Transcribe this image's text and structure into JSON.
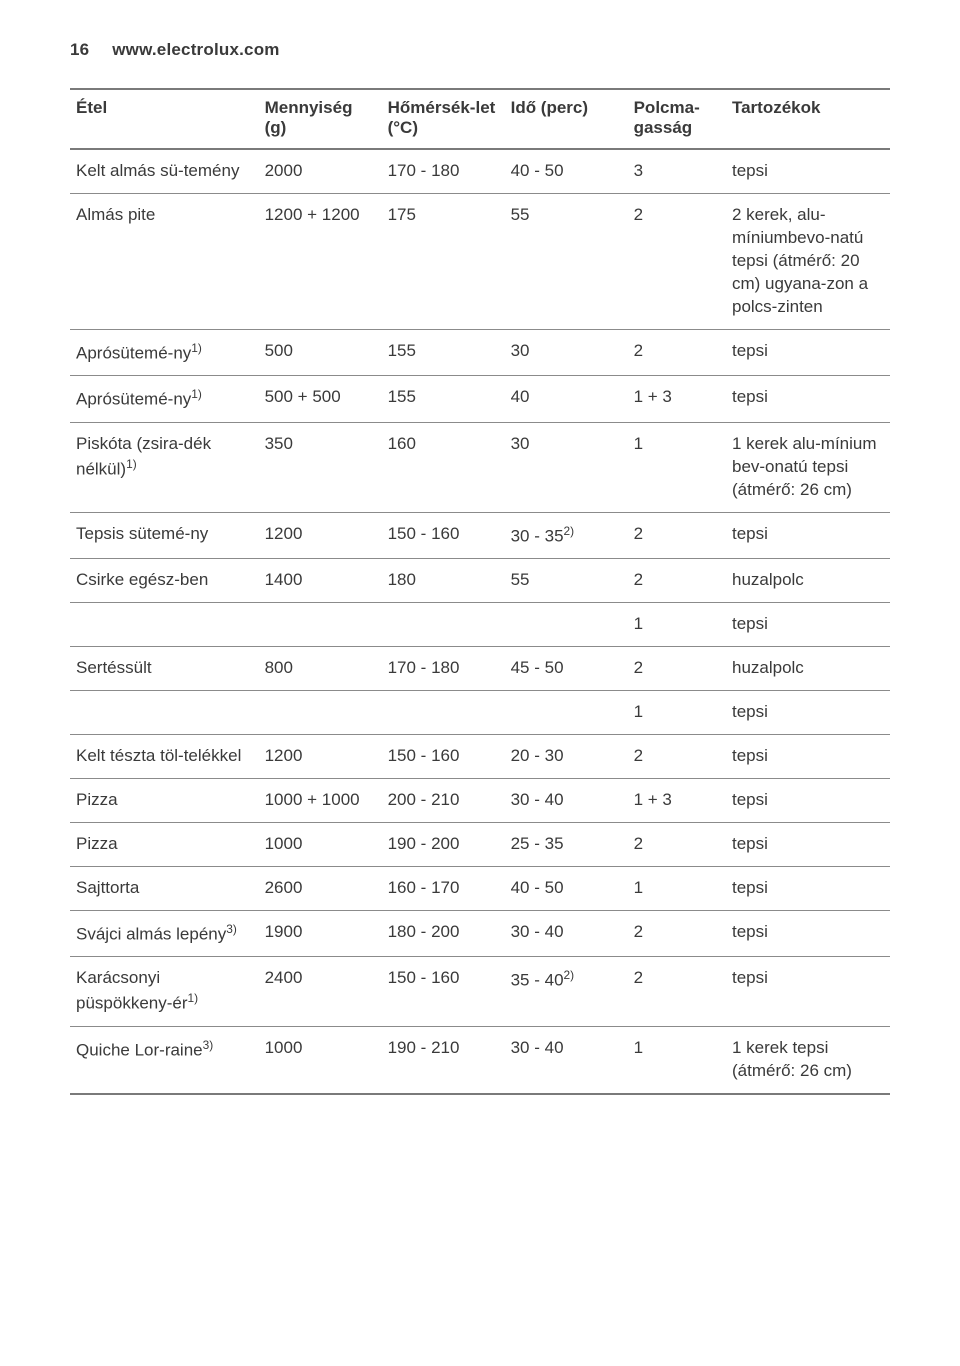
{
  "header": {
    "page_number": "16",
    "site": "www.electrolux.com"
  },
  "columns": {
    "food": "Étel",
    "qty": "Mennyiség (g)",
    "temp": "Hőmérsék‐let (°C)",
    "time": "Idő (perc)",
    "shelf": "Polcma‐gasság",
    "acc": "Tartozékok"
  },
  "rows": [
    {
      "food": "Kelt almás sü‐temény",
      "qty": "2000",
      "temp": "170 - 180",
      "time": "40 - 50",
      "shelf": "3",
      "acc": "tepsi"
    },
    {
      "food": "Almás pite",
      "qty": "1200 + 1200",
      "temp": "175",
      "time": "55",
      "shelf": "2",
      "acc": "2 kerek, alu‐míniumbevo‐natú tepsi (átmérő: 20 cm) ugyana‐zon a polcs‐zinten"
    },
    {
      "food": "Aprósütemé‐ny",
      "food_sup": "1)",
      "qty": "500",
      "temp": "155",
      "time": "30",
      "shelf": "2",
      "acc": "tepsi"
    },
    {
      "food": "Aprósütemé‐ny",
      "food_sup": "1)",
      "qty": "500 + 500",
      "temp": "155",
      "time": "40",
      "shelf": "1 + 3",
      "acc": "tepsi"
    },
    {
      "food": "Piskóta (zsira‐dék nélkül)",
      "food_sup": "1)",
      "qty": "350",
      "temp": "160",
      "time": "30",
      "shelf": "1",
      "acc": "1 kerek alu‐mínium bev‐onatú tepsi (átmérő: 26 cm)"
    },
    {
      "food": "Tepsis sütemé‐ny",
      "qty": "1200",
      "temp": "150 - 160",
      "time": "30 - 35",
      "time_sup": "2)",
      "shelf": "2",
      "acc": "tepsi"
    },
    {
      "food": "Csirke egész‐ben",
      "qty": "1400",
      "temp": "180",
      "time": "55",
      "shelf": "2",
      "acc": "huzalpolc"
    },
    {
      "food": "",
      "qty": "",
      "temp": "",
      "time": "",
      "shelf": "1",
      "acc": "tepsi"
    },
    {
      "food": "Sertéssült",
      "qty": "800",
      "temp": "170 - 180",
      "time": "45 - 50",
      "shelf": "2",
      "acc": "huzalpolc"
    },
    {
      "food": "",
      "qty": "",
      "temp": "",
      "time": "",
      "shelf": "1",
      "acc": "tepsi"
    },
    {
      "food": "Kelt tészta töl‐telékkel",
      "qty": "1200",
      "temp": "150 - 160",
      "time": "20 - 30",
      "shelf": "2",
      "acc": "tepsi"
    },
    {
      "food": "Pizza",
      "qty": "1000 + 1000",
      "temp": "200 - 210",
      "time": "30 - 40",
      "shelf": "1 + 3",
      "acc": "tepsi"
    },
    {
      "food": "Pizza",
      "qty": "1000",
      "temp": "190 - 200",
      "time": "25 - 35",
      "shelf": "2",
      "acc": "tepsi"
    },
    {
      "food": "Sajttorta",
      "qty": "2600",
      "temp": "160 - 170",
      "time": "40 - 50",
      "shelf": "1",
      "acc": "tepsi"
    },
    {
      "food": "Svájci almás lepény",
      "food_sup": "3)",
      "qty": "1900",
      "temp": "180 - 200",
      "time": "30 - 40",
      "shelf": "2",
      "acc": "tepsi"
    },
    {
      "food": "Karácsonyi püspökkeny‐ér",
      "food_sup": "1)",
      "qty": "2400",
      "temp": "150 - 160",
      "time": "35 - 40",
      "time_sup": "2)",
      "shelf": "2",
      "acc": "tepsi"
    },
    {
      "food": "Quiche Lor‐raine",
      "food_sup": "3)",
      "qty": "1000",
      "temp": "190 - 210",
      "time": "30 - 40",
      "shelf": "1",
      "acc": "1 kerek tepsi (átmérő: 26 cm)"
    }
  ]
}
